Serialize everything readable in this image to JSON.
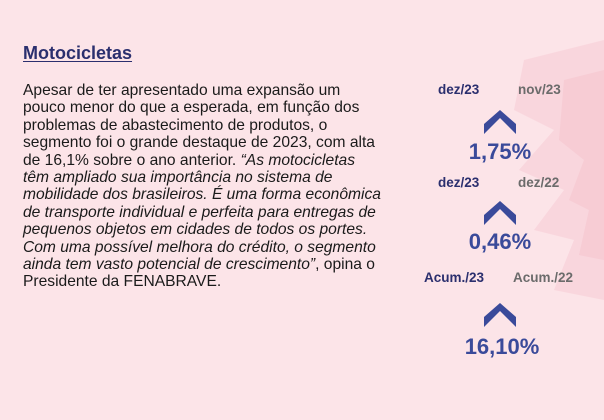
{
  "section": {
    "title": "Motocicletas"
  },
  "article": {
    "intro": "Apesar de ter apresentado uma expansão um pouco menor do que a esperada, em função dos problemas de abastecimento de produtos, o segmento foi o grande destaque de 2023, com alta de 16,1% sobre o ano anterior. ",
    "quote": "“As motocicletas têm ampliado sua importância no sistema de mobilidade dos brasileiros. É uma forma econômica de transporte individual e perfeita para entregas de pequenos objetos em cidades de todos os portes. Com uma possível melhora do crédito, o segmento ainda tem vasto potencial de crescimento”",
    "outro": ", opina o Presidente da FENABRAVE."
  },
  "stats": [
    {
      "period_current": "dez/23",
      "period_compare": "nov/23",
      "trend": "up",
      "value": "1,75%"
    },
    {
      "period_current": "dez/23",
      "period_compare": "dez/22",
      "trend": "up",
      "value": "0,46%"
    },
    {
      "period_current": "Acum./23",
      "period_compare": "Acum./22",
      "trend": "up",
      "value": "16,10%"
    }
  ],
  "colors": {
    "background": "#fce4e8",
    "title": "#2b2f6e",
    "value": "#3a4a9a",
    "arrow": "#3a4a9a",
    "label_compare": "#6b6b6b"
  }
}
